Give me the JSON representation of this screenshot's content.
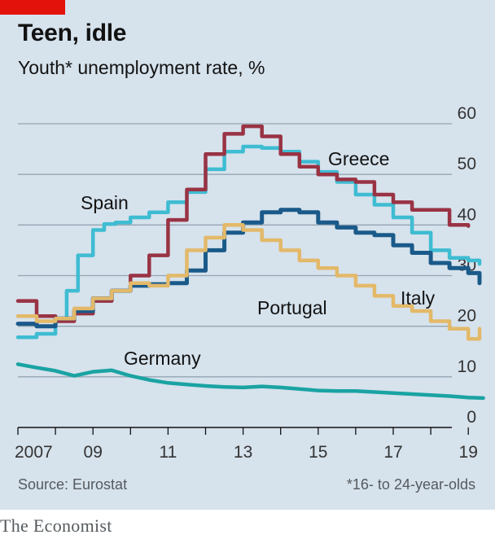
{
  "header": {
    "title": "Teen, idle",
    "subtitle": "Youth* unemployment rate, %"
  },
  "footer": {
    "source": "Source: Eurostat",
    "footnote": "*16- to 24-year-olds",
    "brand": "The Economist"
  },
  "colors": {
    "panel": "#d6e2ec",
    "accent_red": "#e3120b",
    "greece": "#993344",
    "spain": "#3ebcd2",
    "italy": "#1a5a8a",
    "portugal": "#e3b969",
    "germany": "#1aa3a3"
  },
  "chart_data": {
    "type": "line",
    "title": "Teen, idle",
    "subtitle": "Youth* unemployment rate, %",
    "xlabel": "",
    "ylabel": "",
    "xlim": [
      2007,
      2019.9
    ],
    "ylim": [
      0,
      60
    ],
    "yticks": [
      0,
      10,
      20,
      30,
      40,
      50,
      60
    ],
    "ytick_labels": [
      "0",
      "10",
      "20",
      "30",
      "40",
      "50",
      "60"
    ],
    "xticks": [
      2007,
      2009,
      2011,
      2013,
      2015,
      2017,
      2019
    ],
    "xtick_labels": [
      "2007",
      "09",
      "11",
      "13",
      "15",
      "17",
      "19"
    ],
    "grid": true,
    "series": [
      {
        "name": "Germany",
        "key": "germany",
        "x": [
          2007,
          2007.5,
          2008,
          2008.5,
          2009,
          2009.5,
          2010,
          2010.5,
          2011,
          2011.5,
          2012,
          2012.5,
          2013,
          2013.5,
          2014,
          2014.5,
          2015,
          2015.5,
          2016,
          2016.5,
          2017,
          2017.5,
          2018,
          2018.5,
          2019,
          2019.4
        ],
        "y": [
          12.5,
          11.8,
          11.2,
          10.2,
          11.0,
          11.3,
          10.2,
          9.4,
          8.8,
          8.5,
          8.2,
          8.0,
          7.9,
          8.1,
          7.9,
          7.6,
          7.3,
          7.2,
          7.2,
          7.0,
          6.8,
          6.6,
          6.4,
          6.2,
          5.9,
          5.8
        ]
      },
      {
        "name": "Spain",
        "key": "spain",
        "x": [
          2007,
          2007.5,
          2008,
          2008.3,
          2008.6,
          2009,
          2009.3,
          2009.6,
          2010,
          2010.5,
          2011,
          2011.5,
          2012,
          2012.5,
          2013,
          2013.5,
          2014,
          2014.5,
          2015,
          2015.5,
          2016,
          2016.5,
          2017,
          2017.5,
          2018,
          2018.5,
          2019,
          2019.3
        ],
        "y": [
          17.8,
          18.5,
          21.5,
          27.0,
          34.0,
          39.0,
          40.2,
          40.5,
          41.5,
          42.5,
          44.5,
          46.5,
          51.0,
          54.5,
          55.5,
          55.2,
          54.5,
          52.5,
          50.5,
          48.5,
          46.0,
          44.0,
          41.5,
          38.5,
          35.0,
          33.5,
          33.0,
          32.3
        ]
      },
      {
        "name": "Greece",
        "key": "greece",
        "x": [
          2007,
          2007.5,
          2008,
          2008.5,
          2009,
          2009.5,
          2010,
          2010.5,
          2011,
          2011.5,
          2012,
          2012.5,
          2013,
          2013.5,
          2014,
          2014.5,
          2015,
          2015.5,
          2016,
          2016.5,
          2017,
          2017.5,
          2018,
          2018.5,
          2019
        ],
        "y": [
          25.0,
          22.0,
          21.0,
          22.5,
          25.0,
          27.0,
          30.0,
          34.0,
          41.0,
          47.0,
          54.0,
          58.0,
          59.5,
          57.5,
          54.0,
          51.5,
          50.0,
          49.0,
          48.5,
          46.0,
          44.5,
          43.0,
          43.0,
          40.0,
          39.8
        ]
      },
      {
        "name": "Italy",
        "key": "italy",
        "x": [
          2007,
          2007.5,
          2008,
          2008.5,
          2009,
          2009.5,
          2010,
          2010.5,
          2011,
          2011.5,
          2012,
          2012.5,
          2013,
          2013.5,
          2014,
          2014.5,
          2015,
          2015.5,
          2016,
          2016.5,
          2017,
          2017.5,
          2018,
          2018.5,
          2019,
          2019.3
        ],
        "y": [
          20.5,
          20.0,
          21.5,
          23.0,
          25.5,
          27.0,
          28.0,
          28.3,
          28.5,
          31.0,
          35.0,
          38.5,
          40.5,
          42.5,
          43.0,
          42.5,
          40.5,
          39.5,
          38.5,
          38.0,
          36.0,
          34.5,
          32.5,
          31.5,
          30.5,
          28.5
        ]
      },
      {
        "name": "Portugal",
        "key": "portugal",
        "x": [
          2007,
          2007.5,
          2008,
          2008.5,
          2009,
          2009.5,
          2010,
          2010.5,
          2011,
          2011.5,
          2012,
          2012.5,
          2013,
          2013.5,
          2014,
          2014.5,
          2015,
          2015.5,
          2016,
          2016.5,
          2017,
          2017.5,
          2018,
          2018.5,
          2019,
          2019.3
        ],
        "y": [
          22.0,
          21.0,
          21.5,
          23.5,
          25.5,
          27.0,
          28.5,
          28.0,
          30.0,
          35.0,
          37.5,
          40.0,
          39.0,
          37.0,
          35.0,
          33.0,
          31.5,
          30.0,
          28.0,
          26.0,
          24.0,
          23.0,
          21.0,
          19.5,
          17.5,
          19.5
        ]
      }
    ],
    "labels": [
      {
        "text": "Greece",
        "key": "greece"
      },
      {
        "text": "Spain",
        "key": "spain"
      },
      {
        "text": "Italy",
        "key": "italy"
      },
      {
        "text": "Portugal",
        "key": "portugal"
      },
      {
        "text": "Germany",
        "key": "germany"
      }
    ]
  }
}
